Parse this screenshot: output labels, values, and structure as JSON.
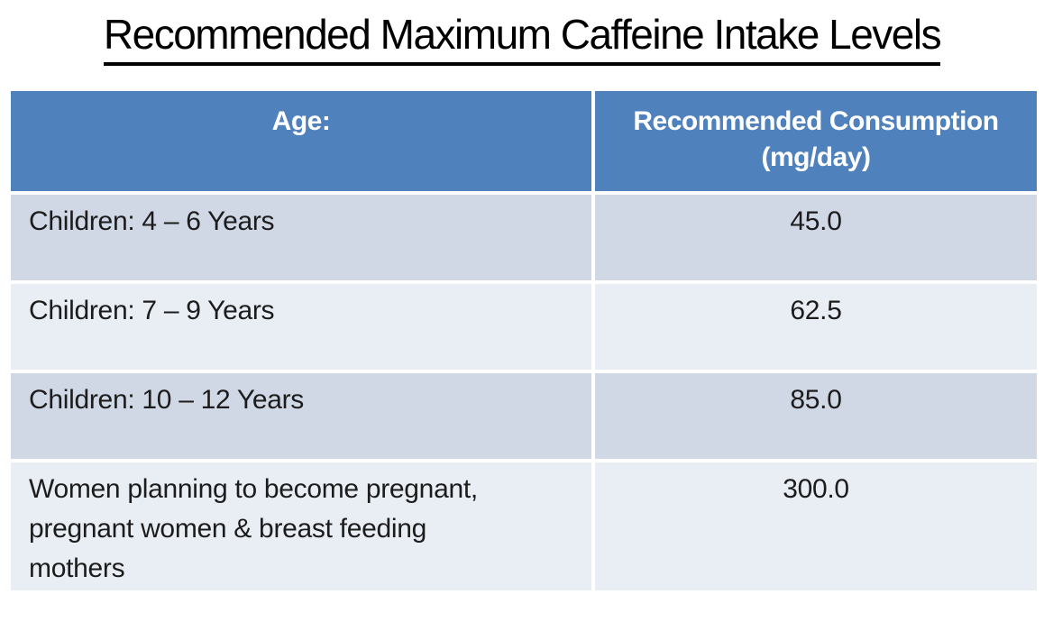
{
  "slide": {
    "title": "Recommended Maximum Caffeine Intake Levels",
    "background": "#ffffff",
    "title_color": "#000000"
  },
  "table": {
    "header": {
      "col1": "Age:",
      "col2": "Recommended Consumption (mg/day)"
    },
    "rows": [
      {
        "age": "Children: 4 – 6 Years",
        "value": "45.0"
      },
      {
        "age": "Children: 7 – 9 Years",
        "value": "62.5"
      },
      {
        "age": "Children: 10 – 12 Years",
        "value": "85.0"
      },
      {
        "age": "Women planning to become pregnant, pregnant women & breast feeding mothers",
        "value": "300.0"
      }
    ],
    "colors": {
      "header_bg": "#4f81bd",
      "header_text": "#ffffff",
      "band_dark": "#d0d7e5",
      "band_light": "#e9edf4",
      "body_text": "#1c1c1c",
      "gridline": "#ffffff"
    }
  }
}
